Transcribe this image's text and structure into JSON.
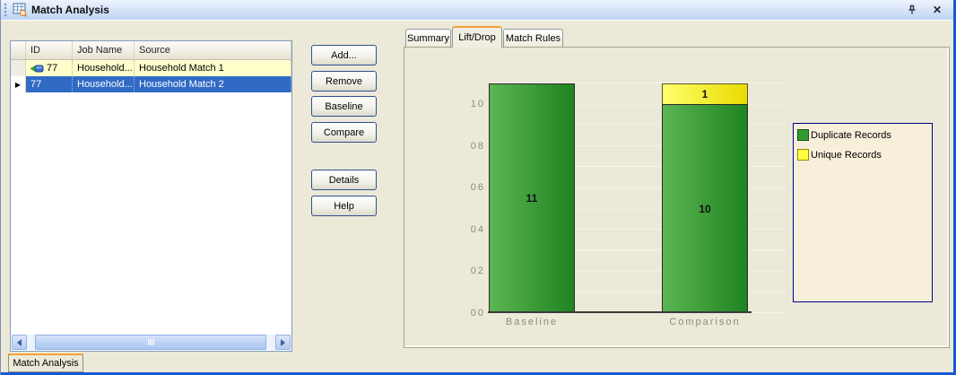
{
  "titlebar": {
    "title": "Match Analysis",
    "close_glyph": "✕"
  },
  "grid": {
    "columns": {
      "id": "ID",
      "job": "Job Name",
      "source": "Source"
    },
    "rows": [
      {
        "id": "77",
        "job": "Household...",
        "source": "Household Match 1"
      },
      {
        "id": "77",
        "job": "Household...",
        "source": "Household Match 2"
      }
    ],
    "selected_row_marker": "▶"
  },
  "buttons": {
    "add": "Add...",
    "remove": "Remove",
    "baseline": "Baseline",
    "compare": "Compare",
    "details": "Details",
    "help": "Help"
  },
  "tabs": {
    "summary": "Summary",
    "liftdrop": "Lift/Drop",
    "matchrules": "Match Rules",
    "active": "Lift/Drop"
  },
  "bottom_tab": "Match Analysis",
  "chart_data": {
    "type": "bar",
    "stacked": true,
    "categories": [
      "Baseline",
      "Comparison"
    ],
    "series": [
      {
        "name": "Duplicate Records",
        "color": "#2f9b2f",
        "values": [
          11,
          10
        ]
      },
      {
        "name": "Unique Records",
        "color": "#ffff40",
        "values": [
          0,
          1
        ]
      }
    ],
    "ylim": [
      0,
      11
    ],
    "ytick_values": [
      0,
      2,
      4,
      6,
      8,
      10
    ],
    "yticks": [
      "00",
      "02",
      "04",
      "06",
      "08",
      "10"
    ],
    "grid": true,
    "legend_position": "right"
  }
}
